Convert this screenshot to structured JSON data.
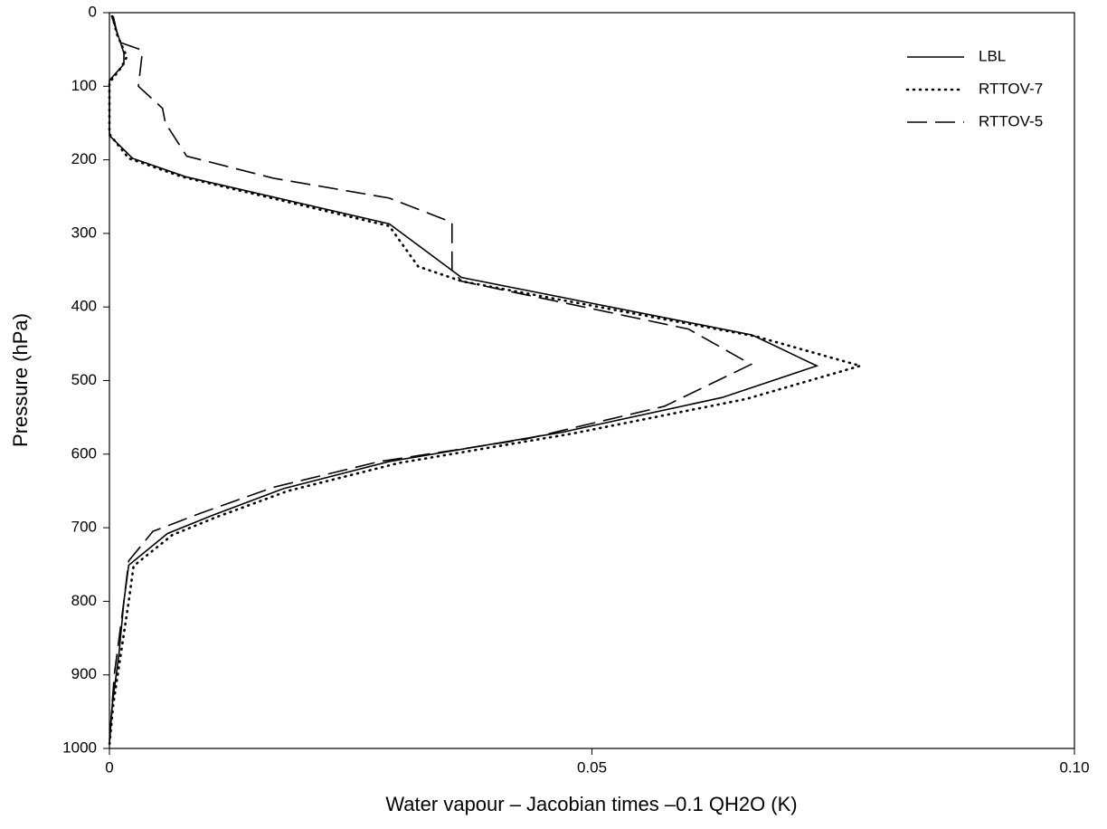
{
  "chart_data": {
    "type": "line",
    "xlabel": "Water vapour – Jacobian times –0.1 QH2O (K)",
    "ylabel": "Pressure (hPa)",
    "xlim": [
      0,
      0.1
    ],
    "xticks": [
      0,
      0.05,
      {
        "value": 0.1,
        "label": "0.10"
      }
    ],
    "ylim": [
      1000,
      0
    ],
    "yticks": [
      0,
      100,
      200,
      300,
      400,
      500,
      600,
      700,
      800,
      900,
      1000
    ],
    "legend": "upper right",
    "series": [
      {
        "name": "LBL",
        "color": "#000000",
        "style": "solid",
        "x": [
          0.0002,
          0.0005,
          0.0015,
          0.0015,
          0,
          0,
          0.0024,
          0.0079,
          0.029,
          0.0365,
          0.0666,
          0.0733,
          0.0635,
          0.047,
          0.029,
          0.018,
          0.0105,
          0.006,
          0.002,
          0.0015,
          0.001,
          0.0003,
          0
        ],
        "values": [
          4,
          15,
          55,
          70,
          92,
          167,
          198,
          223,
          287,
          360,
          438,
          480,
          523,
          570,
          610,
          647,
          684,
          708,
          751,
          800,
          870,
          940,
          995
        ]
      },
      {
        "name": "RTTOV-7",
        "color": "#000000",
        "style": "dotted",
        "x": [
          0.0003,
          0.0008,
          0.0018,
          0.0012,
          0,
          0,
          0.002,
          0.0075,
          0.029,
          0.032,
          0.0365,
          0.067,
          0.0778,
          0.066,
          0.048,
          0.03,
          0.0185,
          0.011,
          0.0065,
          0.0025,
          0.002,
          0.0012,
          0.0004,
          0
        ],
        "values": [
          5,
          30,
          60,
          75,
          95,
          165,
          198,
          223,
          290,
          345,
          365,
          440,
          480,
          525,
          572,
          612,
          650,
          686,
          710,
          752,
          800,
          870,
          940,
          995
        ]
      },
      {
        "name": "RTTOV-5",
        "color": "#000000",
        "style": "dashed",
        "x": [
          0.0004,
          0.001,
          0.0032,
          0.0034,
          0.003,
          0.0055,
          0.0058,
          0.008,
          0.017,
          0.029,
          0.0355,
          0.0355,
          0.0365,
          0.06,
          0.0665,
          0.0575,
          0.043,
          0.028,
          0.017,
          0.0095,
          0.0045,
          0.002,
          0.0015,
          0.0005,
          0
        ],
        "values": [
          5,
          40,
          50,
          55,
          100,
          130,
          150,
          195,
          225,
          252,
          285,
          350,
          365,
          430,
          478,
          535,
          580,
          610,
          645,
          680,
          705,
          745,
          800,
          900,
          990
        ]
      }
    ]
  }
}
